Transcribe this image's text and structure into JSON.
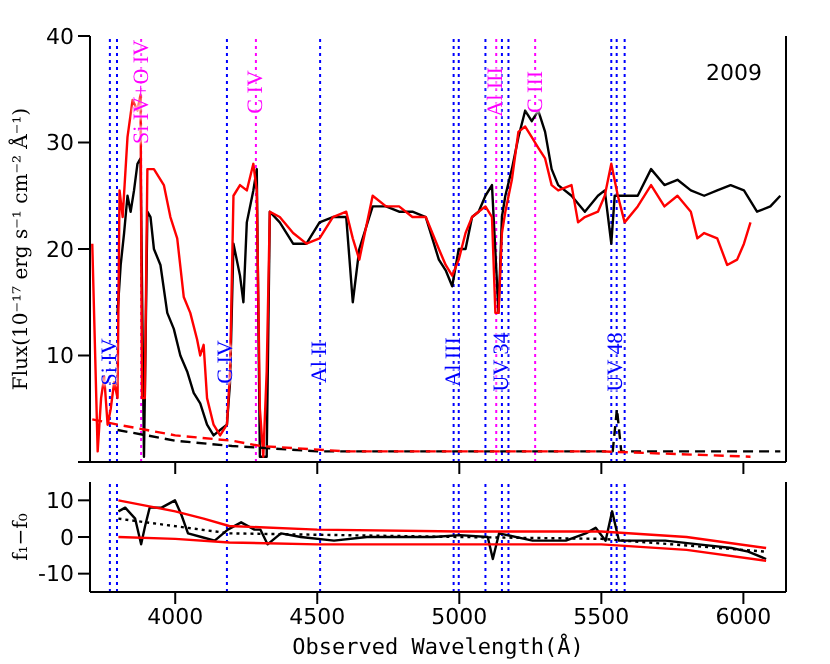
{
  "chart_data": [
    {
      "type": "line",
      "ylabel": "Flux(10⁻¹⁷ erg s⁻¹ cm⁻² Å⁻¹)",
      "annotations": [
        "2009"
      ],
      "xlim": [
        3700,
        6150
      ],
      "xticks": [
        4000,
        4500,
        5000,
        5500,
        6000
      ],
      "ylim": [
        0,
        40
      ],
      "yticks": [
        {
          "value": 0,
          "label": null
        },
        10,
        20,
        30,
        40
      ],
      "tick_labels": "y",
      "grid": false,
      "series": [
        {
          "color": "#000000",
          "x": [
            3797,
            3808,
            3820,
            3832,
            3843,
            3855,
            3867,
            3878,
            3890,
            3902,
            3913,
            3925,
            3948,
            3972,
            3995,
            4018,
            4042,
            4065,
            4088,
            4112,
            4135,
            4158,
            4182,
            4193,
            4205,
            4228,
            4240,
            4252,
            4275,
            4287,
            4298,
            4322,
            4333,
            4368,
            4415,
            4462,
            4508,
            4555,
            4602,
            4625,
            4648,
            4695,
            4742,
            4788,
            4835,
            4882,
            4928,
            4952,
            4975,
            4998,
            5022,
            5045,
            5068,
            5092,
            5115,
            5138,
            5150,
            5162,
            5185,
            5208,
            5232,
            5255,
            5278,
            5302,
            5325,
            5348,
            5395,
            5442,
            5488,
            5512,
            5535,
            5547,
            5582,
            5628,
            5675,
            5722,
            5768,
            5815,
            5862,
            5908,
            5955,
            6002,
            6048,
            6095,
            6130
          ],
          "values": [
            14,
            18.5,
            21.5,
            25,
            23.5,
            25.5,
            28,
            28.5,
            0.5,
            23.5,
            23,
            20,
            18.5,
            14,
            12.5,
            10,
            8.5,
            6.5,
            5.5,
            3.5,
            2.5,
            3,
            3.5,
            7.5,
            20.5,
            17.5,
            15,
            22.5,
            25.5,
            27.5,
            0.5,
            0.5,
            23.5,
            22.5,
            20.5,
            20.5,
            22.5,
            23,
            23,
            15,
            20,
            24,
            24,
            23.5,
            23.5,
            23,
            19,
            18,
            16.5,
            20,
            20,
            23,
            23.5,
            25,
            26,
            14,
            23,
            25,
            27.5,
            30.5,
            33,
            32,
            33,
            31,
            27.5,
            26,
            25,
            23.5,
            25,
            25.5,
            20.5,
            25,
            25,
            25,
            27.5,
            26,
            26.5,
            25.5,
            25,
            25.5,
            26,
            25.5,
            23.5,
            24,
            25
          ]
        },
        {
          "color": "#ff0000",
          "x": [
            3708,
            3727,
            3739,
            3750,
            3762,
            3773,
            3785,
            3797,
            3804,
            3815,
            3832,
            3850,
            3867,
            3878,
            3883,
            3893,
            3902,
            3925,
            3960,
            3983,
            4007,
            4030,
            4053,
            4077,
            4088,
            4100,
            4112,
            4135,
            4158,
            4182,
            4193,
            4205,
            4228,
            4252,
            4275,
            4287,
            4298,
            4310,
            4322,
            4333,
            4368,
            4415,
            4462,
            4508,
            4555,
            4602,
            4625,
            4648,
            4695,
            4742,
            4788,
            4835,
            4882,
            4928,
            4952,
            4975,
            4998,
            5022,
            5045,
            5068,
            5092,
            5115,
            5127,
            5138,
            5150,
            5162,
            5185,
            5208,
            5232,
            5255,
            5278,
            5302,
            5325,
            5348,
            5395,
            5418,
            5442,
            5488,
            5512,
            5535,
            5558,
            5582,
            5628,
            5675,
            5722,
            5768,
            5815,
            5838,
            5862,
            5908,
            5943,
            5978,
            6002,
            6025
          ],
          "values": [
            20.5,
            1,
            6,
            8,
            3.5,
            5,
            7.5,
            6,
            25.5,
            23,
            30.5,
            34,
            33,
            34.5,
            6,
            6,
            27.5,
            27.5,
            26,
            23,
            21,
            15.5,
            14,
            11.5,
            10,
            11,
            6,
            3.5,
            2.5,
            3.5,
            8.5,
            25,
            26,
            25.5,
            28,
            25.5,
            5,
            0.5,
            8.5,
            23.5,
            23,
            21.5,
            20.5,
            21,
            23,
            23.5,
            21,
            19,
            25,
            24,
            24,
            23,
            23,
            20,
            18.5,
            17.5,
            19,
            21.5,
            23,
            23.5,
            24,
            23,
            14,
            14,
            21.5,
            23.5,
            26.5,
            31,
            31.5,
            30.5,
            29.5,
            28.5,
            26,
            25.5,
            26,
            22.5,
            23,
            23.5,
            25,
            28,
            25,
            22.5,
            24,
            26,
            24,
            25,
            23.5,
            21,
            21.5,
            21,
            18.5,
            19,
            20.5,
            22.5
          ]
        },
        {
          "color": "#000000",
          "line_style": "dashed",
          "x": [
            3797,
            3900,
            4000,
            4200,
            4500,
            5000,
            5540,
            5555,
            5570,
            6130
          ],
          "values": [
            3,
            2.5,
            2,
            1.5,
            1,
            1,
            1,
            5,
            1,
            1
          ]
        },
        {
          "color": "#ff0000",
          "line_style": "dashed",
          "x": [
            3708,
            3800,
            3900,
            4000,
            4200,
            4300,
            4600,
            5000,
            5500,
            6025
          ],
          "values": [
            4,
            3.5,
            3,
            2.5,
            2,
            1.5,
            1,
            1,
            1,
            0.5
          ]
        }
      ],
      "ref_lines": [
        {
          "axis": "x",
          "value": 3770,
          "label": "Si IV",
          "color": "#0000ff",
          "line_style": "dotted"
        },
        {
          "axis": "x",
          "value": 3795,
          "color": "#0000ff",
          "line_style": "dotted"
        },
        {
          "axis": "x",
          "value": 3880,
          "label": "Si IV+O IV",
          "color": "#ff00ff",
          "line_style": "dotted"
        },
        {
          "axis": "x",
          "value": 4182,
          "label": "C IV",
          "color": "#0000ff",
          "line_style": "dotted"
        },
        {
          "axis": "x",
          "value": 4284,
          "label": "C IV",
          "color": "#ff00ff",
          "line_style": "dotted"
        },
        {
          "axis": "x",
          "value": 4510,
          "label": "Al II",
          "color": "#0000ff",
          "line_style": "dotted"
        },
        {
          "axis": "x",
          "value": 4980,
          "label": "Al III",
          "color": "#0000ff",
          "line_style": "dotted"
        },
        {
          "axis": "x",
          "value": 4998,
          "color": "#0000ff",
          "line_style": "dotted"
        },
        {
          "axis": "x",
          "value": 5092,
          "color": "#0000ff",
          "line_style": "dotted"
        },
        {
          "axis": "x",
          "value": 5130,
          "label": "Al III",
          "color": "#ff00ff",
          "line_style": "dotted"
        },
        {
          "axis": "x",
          "value": 5150,
          "label": "UV 34",
          "color": "#0000ff",
          "line_style": "dotted"
        },
        {
          "axis": "x",
          "value": 5173,
          "color": "#0000ff",
          "line_style": "dotted"
        },
        {
          "axis": "x",
          "value": 5267,
          "label": "C III",
          "color": "#ff00ff",
          "line_style": "dotted"
        },
        {
          "axis": "x",
          "value": 5535,
          "color": "#0000ff",
          "line_style": "dotted"
        },
        {
          "axis": "x",
          "value": 5554,
          "label": "UV 48",
          "color": "#0000ff",
          "line_style": "dotted"
        },
        {
          "axis": "x",
          "value": 5582,
          "color": "#0000ff",
          "line_style": "dotted"
        }
      ]
    },
    {
      "type": "line",
      "xlabel": "Observed Wavelength(Å)",
      "ylabel": "f₁−f₀",
      "xlim": [
        3700,
        6150
      ],
      "xticks": [
        4000,
        4500,
        5000,
        5500,
        6000
      ],
      "ylim": [
        -15,
        15
      ],
      "yticks": [
        -10,
        0,
        10
      ],
      "grid": false,
      "series": [
        {
          "color": "#000000",
          "x": [
            3800,
            3824,
            3859,
            3880,
            3894,
            3910,
            3952,
            3999,
            4022,
            4045,
            4092,
            4139,
            4185,
            4232,
            4279,
            4300,
            4325,
            4372,
            4442,
            4559,
            4675,
            4792,
            4908,
            5002,
            5100,
            5118,
            5140,
            5258,
            5375,
            5445,
            5480,
            5515,
            5538,
            5562,
            5609,
            5725,
            5842,
            5958,
            6017,
            6080
          ],
          "values": [
            7,
            8,
            5,
            -2,
            3,
            8,
            8,
            10,
            6,
            1,
            0,
            -1,
            2,
            4,
            2,
            2,
            -2,
            1,
            0,
            -1,
            0,
            0,
            0,
            0.5,
            0,
            -6,
            1,
            -1,
            -1,
            1,
            2.5,
            -1,
            7,
            -1,
            -1,
            -1,
            -2,
            -3,
            -4,
            -6
          ]
        },
        {
          "color": "#ff0000",
          "x": [
            3800,
            3900,
            4000,
            4100,
            4190,
            4500,
            5000,
            5500,
            5800,
            6080
          ],
          "values": [
            10,
            8.5,
            7,
            5,
            3,
            2,
            1.5,
            1.5,
            0,
            -3
          ]
        },
        {
          "color": "#ff0000",
          "x": [
            3800,
            4000,
            4190,
            4500,
            5000,
            5500,
            5800,
            6080
          ],
          "values": [
            0,
            -0.5,
            -1.5,
            -2,
            -2,
            -2,
            -3.5,
            -6.5
          ]
        },
        {
          "color": "#000000",
          "line_style": "dotted",
          "x": [
            3800,
            4190,
            5000,
            5500,
            6080
          ],
          "values": [
            5,
            1,
            0,
            -0.5,
            -4
          ]
        }
      ],
      "ref_lines": [
        {
          "axis": "x",
          "value": 3770,
          "color": "#0000ff",
          "line_style": "dotted"
        },
        {
          "axis": "x",
          "value": 3795,
          "color": "#0000ff",
          "line_style": "dotted"
        },
        {
          "axis": "x",
          "value": 4182,
          "color": "#0000ff",
          "line_style": "dotted"
        },
        {
          "axis": "x",
          "value": 4510,
          "color": "#0000ff",
          "line_style": "dotted"
        },
        {
          "axis": "x",
          "value": 4980,
          "color": "#0000ff",
          "line_style": "dotted"
        },
        {
          "axis": "x",
          "value": 4998,
          "color": "#0000ff",
          "line_style": "dotted"
        },
        {
          "axis": "x",
          "value": 5092,
          "color": "#0000ff",
          "line_style": "dotted"
        },
        {
          "axis": "x",
          "value": 5150,
          "color": "#0000ff",
          "line_style": "dotted"
        },
        {
          "axis": "x",
          "value": 5173,
          "color": "#0000ff",
          "line_style": "dotted"
        },
        {
          "axis": "x",
          "value": 5535,
          "color": "#0000ff",
          "line_style": "dotted"
        },
        {
          "axis": "x",
          "value": 5554,
          "color": "#0000ff",
          "line_style": "dotted"
        },
        {
          "axis": "x",
          "value": 5582,
          "color": "#0000ff",
          "line_style": "dotted"
        }
      ]
    }
  ]
}
